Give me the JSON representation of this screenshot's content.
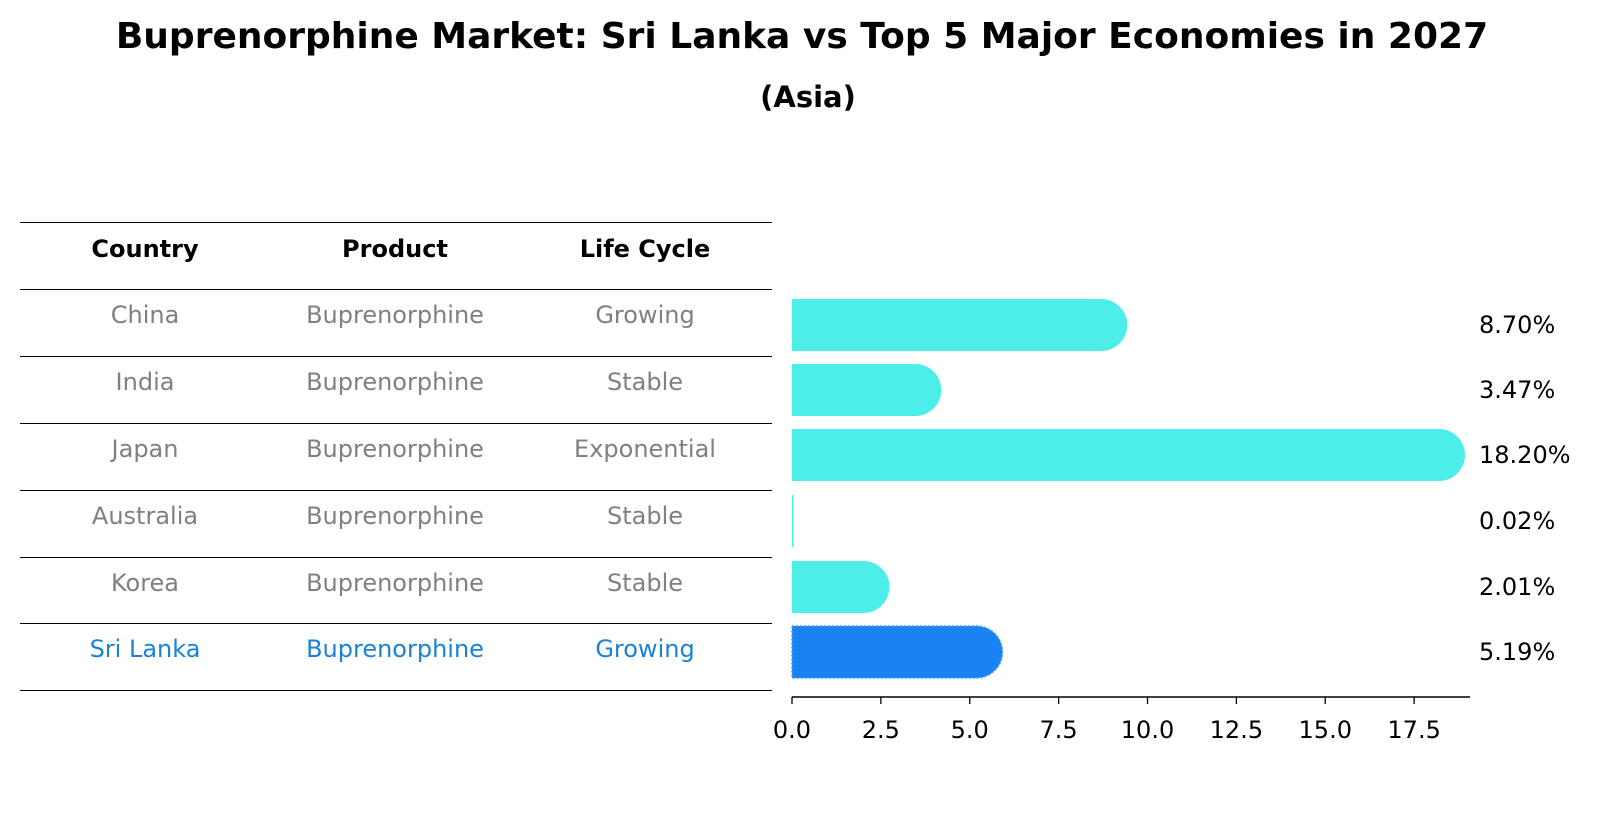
{
  "title": "Buprenorphine Market: Sri Lanka vs Top 5 Major Economies in 2027",
  "subtitle": "(Asia)",
  "table": {
    "headers": [
      "Country",
      "Product",
      "Life Cycle"
    ],
    "rows": [
      {
        "country": "China",
        "product": "Buprenorphine",
        "life_cycle": "Growing",
        "highlight": false
      },
      {
        "country": "India",
        "product": "Buprenorphine",
        "life_cycle": "Stable",
        "highlight": false
      },
      {
        "country": "Japan",
        "product": "Buprenorphine",
        "life_cycle": "Exponential",
        "highlight": false
      },
      {
        "country": "Australia",
        "product": "Buprenorphine",
        "life_cycle": "Stable",
        "highlight": false
      },
      {
        "country": "Korea",
        "product": "Buprenorphine",
        "life_cycle": "Stable",
        "highlight": false
      },
      {
        "country": "Sri Lanka",
        "product": "Buprenorphine",
        "life_cycle": "Growing",
        "highlight": true
      }
    ]
  },
  "chart_data": {
    "type": "bar",
    "orientation": "horizontal",
    "categories": [
      "China",
      "India",
      "Japan",
      "Australia",
      "Korea",
      "Sri Lanka"
    ],
    "values": [
      8.7,
      3.47,
      18.2,
      0.02,
      2.01,
      5.19
    ],
    "value_labels": [
      "8.70%",
      "3.47%",
      "18.20%",
      "0.02%",
      "2.01%",
      "5.19%"
    ],
    "highlight_category": "Sri Lanka",
    "xlim": [
      0,
      19.1
    ],
    "xticks": [
      0.0,
      2.5,
      5.0,
      7.5,
      10.0,
      12.5,
      15.0,
      17.5
    ],
    "xtick_labels": [
      "0.0",
      "2.5",
      "5.0",
      "7.5",
      "10.0",
      "12.5",
      "15.0",
      "17.5"
    ],
    "xlabel": "",
    "ylabel": "",
    "grid": false,
    "colors": {
      "default": "#4deeea",
      "highlight": "#1a82f5",
      "header_text": "#000000",
      "body_text": "#808080",
      "highlight_text": "#1a82d9"
    }
  }
}
